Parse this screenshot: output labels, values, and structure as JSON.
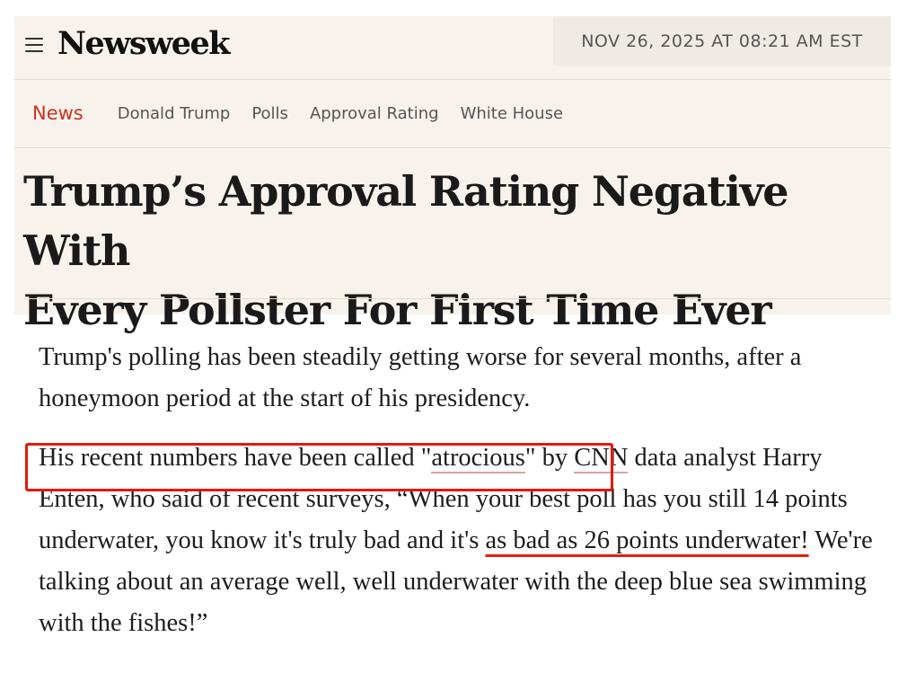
{
  "header": {
    "logo": "Newsweek",
    "timestamp": "NOV 26, 2025 AT 08:21 AM EST"
  },
  "nav": {
    "section": "News",
    "tags": [
      "Donald Trump",
      "Polls",
      "Approval Rating",
      "White House"
    ]
  },
  "article": {
    "headline_line1": "Trump’s Approval Rating Negative With",
    "headline_line2": "Every Pollster For First Time Ever",
    "paragraph1": "Trump's polling has been steadily getting worse for several months, after a honeymoon period at the start of his presidency.",
    "p2_a": "His recent numbers have been called \"",
    "p2_link1": "atrocious",
    "p2_b": "\" by ",
    "p2_link2": "CNN",
    "p2_c": " data analyst Harry Enten, who said of recent surveys, “When your best poll has you still 14 points underwater, you know it's truly bad and it's ",
    "p2_highlight": "as bad as 26 points underwater!",
    "p2_d": " We're talking about an average well, well underwater with the deep blue sea swimming with the fishes!”"
  },
  "colors": {
    "accent_red": "#d0301f",
    "annotation_red": "#e3190b",
    "header_bg": "#f7f3ec"
  }
}
